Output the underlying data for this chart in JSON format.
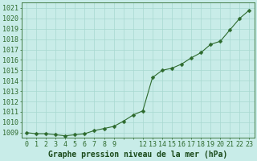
{
  "x": [
    0,
    1,
    2,
    3,
    4,
    5,
    6,
    7,
    8,
    9,
    10,
    11,
    12,
    13,
    14,
    15,
    16,
    17,
    18,
    19,
    20,
    21,
    22,
    23
  ],
  "y": [
    1009.0,
    1008.9,
    1008.9,
    1008.8,
    1008.7,
    1008.8,
    1008.9,
    1009.2,
    1009.4,
    1009.6,
    1010.1,
    1010.7,
    1011.1,
    1014.3,
    1015.0,
    1015.2,
    1015.6,
    1016.2,
    1016.7,
    1017.5,
    1017.8,
    1018.9,
    1020.0,
    1020.8
  ],
  "line_color": "#2d6a2d",
  "marker": "D",
  "marker_size": 2.5,
  "background_color": "#c8ece8",
  "grid_color": "#a8d8d0",
  "ymin": 1008.5,
  "ymax": 1021.5,
  "xmin": -0.5,
  "xmax": 23.5,
  "xlabel": "Graphe pression niveau de la mer (hPa)",
  "axis_label_color": "#1a4a1a",
  "tick_color": "#2d6a2d",
  "font_size_label": 7.0,
  "font_size_tick": 6.0
}
